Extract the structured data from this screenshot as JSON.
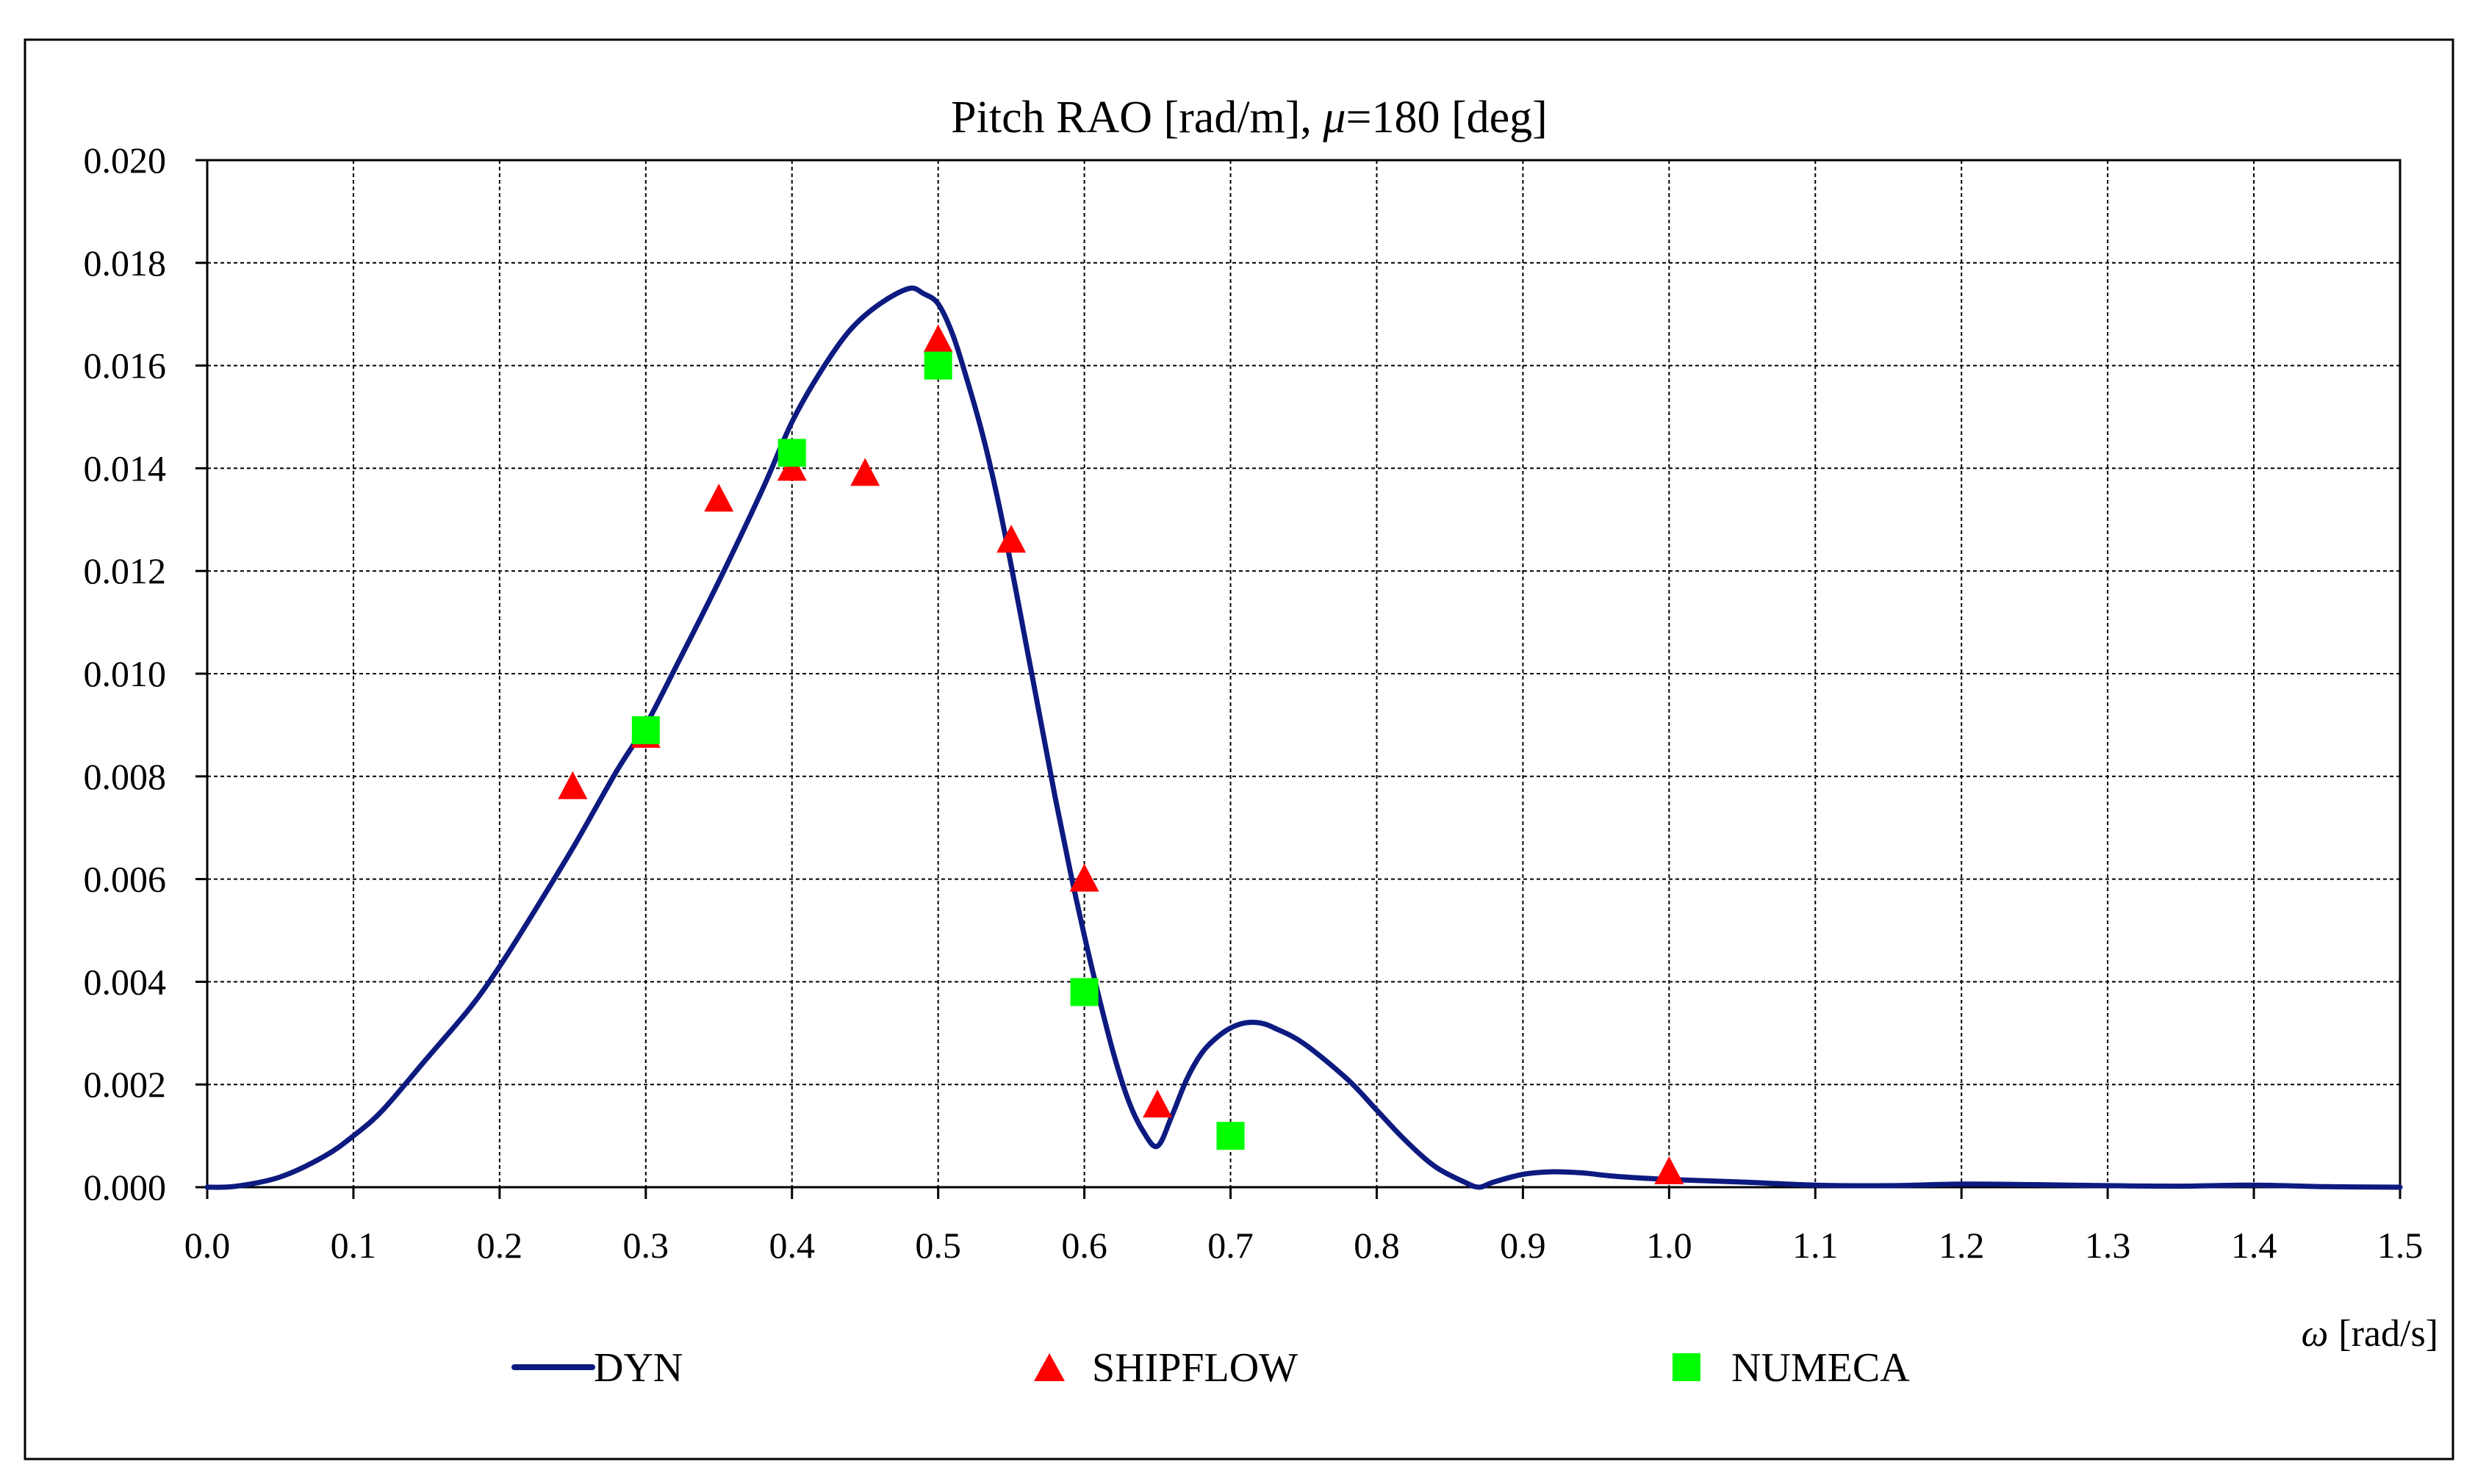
{
  "chart_data": {
    "type": "line",
    "title": "Pitch RAO [rad/m], μ=180 [deg]",
    "title_parts": {
      "prefix": "Pitch RAO [rad/m], ",
      "mu": "μ",
      "suffix": "=180 [deg]"
    },
    "xlabel": "[rad/s]",
    "xlabel_symbol": "ω",
    "ylabel": "",
    "xlim": [
      0.0,
      1.5
    ],
    "ylim": [
      0.0,
      0.02
    ],
    "x_ticks": [
      0.0,
      0.1,
      0.2,
      0.3,
      0.4,
      0.5,
      0.6,
      0.7,
      0.8,
      0.9,
      1.0,
      1.1,
      1.2,
      1.3,
      1.4,
      1.5
    ],
    "x_tick_labels": [
      "0.0",
      "0.1",
      "0.2",
      "0.3",
      "0.4",
      "0.5",
      "0.6",
      "0.7",
      "0.8",
      "0.9",
      "1.0",
      "1.1",
      "1.2",
      "1.3",
      "1.4",
      "1.5"
    ],
    "y_ticks": [
      0.0,
      0.002,
      0.004,
      0.006,
      0.008,
      0.01,
      0.012,
      0.014,
      0.016,
      0.018,
      0.02
    ],
    "y_tick_labels": [
      "0.000",
      "0.002",
      "0.004",
      "0.006",
      "0.008",
      "0.010",
      "0.012",
      "0.014",
      "0.016",
      "0.018",
      "0.020"
    ],
    "grid": true,
    "legend_position": "bottom",
    "series": [
      {
        "name": "DYN",
        "kind": "line",
        "color": "#0d1a80",
        "x": [
          0.0,
          0.02,
          0.05,
          0.08,
          0.1,
          0.12,
          0.15,
          0.18,
          0.2,
          0.22,
          0.25,
          0.28,
          0.3,
          0.32,
          0.35,
          0.38,
          0.4,
          0.42,
          0.44,
          0.46,
          0.48,
          0.49,
          0.5,
          0.51,
          0.52,
          0.53,
          0.54,
          0.55,
          0.56,
          0.57,
          0.58,
          0.59,
          0.6,
          0.61,
          0.62,
          0.63,
          0.64,
          0.65,
          0.66,
          0.67,
          0.68,
          0.69,
          0.7,
          0.71,
          0.72,
          0.73,
          0.75,
          0.78,
          0.8,
          0.82,
          0.84,
          0.86,
          0.87,
          0.88,
          0.9,
          0.92,
          0.94,
          0.96,
          0.98,
          1.0,
          1.05,
          1.1,
          1.15,
          1.2,
          1.25,
          1.3,
          1.35,
          1.4,
          1.45,
          1.5
        ],
        "y": [
          0.0,
          2e-05,
          0.0002,
          0.0006,
          0.001,
          0.0015,
          0.0025,
          0.0035,
          0.0043,
          0.0052,
          0.0066,
          0.0081,
          0.009,
          0.0101,
          0.0118,
          0.0136,
          0.0149,
          0.0159,
          0.0167,
          0.0172,
          0.0175,
          0.0174,
          0.0172,
          0.0166,
          0.0157,
          0.0147,
          0.0135,
          0.0121,
          0.0106,
          0.0091,
          0.0076,
          0.0062,
          0.0049,
          0.0037,
          0.0026,
          0.0017,
          0.0011,
          0.0008,
          0.0014,
          0.0021,
          0.0026,
          0.0029,
          0.0031,
          0.0032,
          0.0032,
          0.0031,
          0.0028,
          0.0021,
          0.0015,
          0.0009,
          0.0004,
          0.0001,
          0.0,
          0.0001,
          0.00025,
          0.0003,
          0.00028,
          0.00022,
          0.00018,
          0.00015,
          0.0001,
          4e-05,
          3e-05,
          6e-05,
          5e-05,
          3e-05,
          2e-05,
          4e-05,
          1e-05,
          0.0
        ]
      },
      {
        "name": "SHIPFLOW",
        "kind": "marker",
        "marker": "triangle",
        "color": "#ff0000",
        "x": [
          0.25,
          0.3,
          0.35,
          0.4,
          0.45,
          0.5,
          0.55,
          0.6,
          0.65,
          1.0
        ],
        "y": [
          0.0078,
          0.0088,
          0.0134,
          0.014,
          0.0139,
          0.0165,
          0.0126,
          0.006,
          0.0016,
          0.0003
        ]
      },
      {
        "name": "NUMECA",
        "kind": "marker",
        "marker": "square",
        "color": "#00ff00",
        "x": [
          0.3,
          0.4,
          0.5,
          0.6,
          0.7
        ],
        "y": [
          0.0089,
          0.0143,
          0.016,
          0.0038,
          0.001
        ]
      }
    ]
  }
}
